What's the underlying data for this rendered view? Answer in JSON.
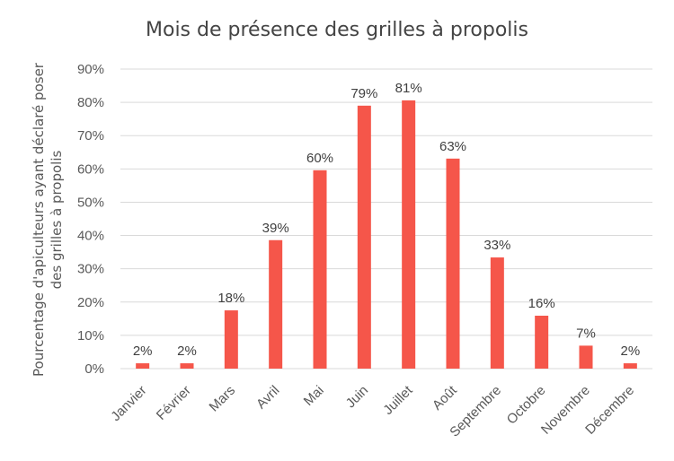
{
  "chart_data": {
    "type": "bar",
    "title": "Mois de présence des grilles à propolis",
    "ylabel_lines": [
      "Pourcentage d'apiculteurs ayant déclaré poser",
      "des grilles à propolis"
    ],
    "xlabel": "",
    "categories": [
      "Janvier",
      "Février",
      "Mars",
      "Avril",
      "Mai",
      "Juin",
      "Juillet",
      "Août",
      "Septembre",
      "Octobre",
      "Novembre",
      "Décembre"
    ],
    "values": [
      1.6,
      1.6,
      17.5,
      38.6,
      59.6,
      79.0,
      80.6,
      63.1,
      33.4,
      15.9,
      6.9,
      1.6
    ],
    "data_labels": [
      "2%",
      "2%",
      "18%",
      "39%",
      "60%",
      "79%",
      "81%",
      "63%",
      "33%",
      "16%",
      "7%",
      "2%"
    ],
    "ylim": [
      0,
      90
    ],
    "yticks": [
      "0%",
      "10%",
      "20%",
      "30%",
      "40%",
      "50%",
      "60%",
      "70%",
      "80%",
      "90%"
    ],
    "grid": true,
    "bar_color": "#f5564a"
  }
}
